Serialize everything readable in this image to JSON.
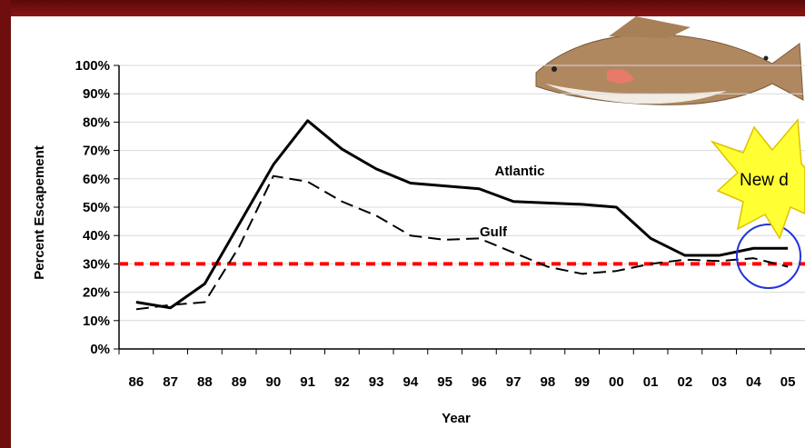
{
  "chart_data": {
    "type": "line",
    "y_label": "Percent Escapement",
    "x_label": "Year",
    "categories": [
      "86",
      "87",
      "88",
      "89",
      "90",
      "91",
      "92",
      "93",
      "94",
      "95",
      "96",
      "97",
      "98",
      "99",
      "00",
      "01",
      "02",
      "03",
      "04",
      "05"
    ],
    "series": [
      {
        "name": "Atlantic",
        "color": "#000000",
        "dash": "solid",
        "values": [
          16.5,
          14.5,
          23,
          44,
          65,
          80.5,
          70.5,
          63.5,
          58.5,
          57.5,
          56.5,
          52,
          51.5,
          51,
          50,
          39,
          33,
          33,
          35.5,
          35.5
        ]
      },
      {
        "name": "Gulf",
        "color": "#000000",
        "dash": "dashed",
        "values": [
          14,
          15.5,
          16.5,
          36,
          61,
          59,
          52,
          47,
          40,
          38.5,
          39,
          34,
          29,
          26.5,
          27.5,
          30,
          31.5,
          31,
          32,
          29
        ]
      }
    ],
    "reference_line": {
      "value": 30,
      "color": "#ff0000"
    },
    "annotation": "New d",
    "ylim": [
      0,
      100
    ],
    "yticks": [
      {
        "value": 0,
        "label": "0%"
      },
      {
        "value": 10,
        "label": "10%"
      },
      {
        "value": 20,
        "label": "20%"
      },
      {
        "value": 30,
        "label": "30%"
      },
      {
        "value": 40,
        "label": "40%"
      },
      {
        "value": 50,
        "label": "50%"
      },
      {
        "value": 60,
        "label": "60%"
      },
      {
        "value": 70,
        "label": "70%"
      },
      {
        "value": 80,
        "label": "80%"
      },
      {
        "value": 90,
        "label": "90%"
      },
      {
        "value": 100,
        "label": "100%"
      }
    ],
    "grid": true
  }
}
